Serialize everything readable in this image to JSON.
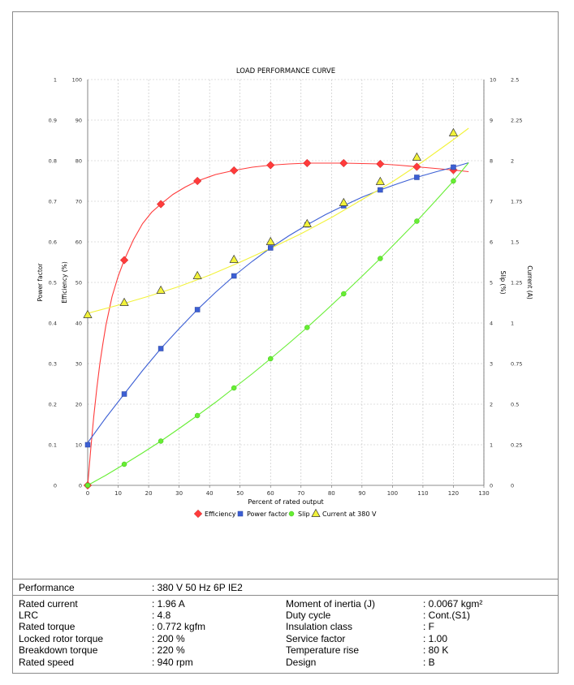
{
  "chart_data": {
    "type": "line",
    "title": "LOAD PERFORMANCE CURVE",
    "xlabel": "Percent of rated output",
    "xlim": [
      0,
      130
    ],
    "x_ticks": [
      "0",
      "10",
      "20",
      "30",
      "40",
      "50",
      "60",
      "70",
      "80",
      "90",
      "100",
      "110",
      "120",
      "130"
    ],
    "grid": true,
    "legend_position": "bottom",
    "axes": {
      "power_factor": {
        "label": "Power factor",
        "side": "left-outer",
        "range": [
          0,
          1
        ],
        "ticks": [
          "0",
          "0.1",
          "0.2",
          "0.3",
          "0.4",
          "0.5",
          "0.6",
          "0.7",
          "0.8",
          "0.9",
          "1"
        ]
      },
      "efficiency": {
        "label": "Efficiency (%)",
        "side": "left-inner",
        "range": [
          0,
          100
        ],
        "ticks": [
          "0",
          "10",
          "20",
          "30",
          "40",
          "50",
          "60",
          "70",
          "80",
          "90",
          "100"
        ]
      },
      "slip": {
        "label": "Slip (%)",
        "side": "right-inner",
        "range": [
          0,
          10
        ],
        "ticks": [
          "0",
          "1",
          "2",
          "3",
          "4",
          "5",
          "6",
          "7",
          "8",
          "9",
          "10"
        ]
      },
      "current": {
        "label": "Current (A)",
        "side": "right-outer",
        "range": [
          0,
          2.5
        ],
        "ticks": [
          "0",
          "0.25",
          "0.5",
          "0.75",
          "1",
          "1.25",
          "1.5",
          "1.75",
          "2",
          "2.25",
          "2.5"
        ]
      }
    },
    "series": [
      {
        "name": "Efficiency",
        "axis": "efficiency",
        "color": "#ff3b3b",
        "marker": "diamond",
        "x": [
          0,
          12,
          24,
          36,
          48,
          60,
          72,
          84,
          96,
          108,
          120
        ],
        "y": [
          0,
          55.5,
          69.3,
          75,
          77.6,
          78.9,
          79.4,
          79.4,
          79.2,
          78.5,
          77.7
        ],
        "curve_x": [
          0,
          1,
          2,
          3,
          4,
          5,
          6,
          8,
          10,
          12,
          15,
          18,
          21,
          24,
          28,
          32,
          36,
          42,
          48,
          54,
          60,
          66,
          72,
          78,
          84,
          90,
          96,
          102,
          108,
          114,
          120,
          125
        ],
        "curve_y": [
          0,
          9,
          17,
          24,
          30,
          35,
          39.5,
          46.5,
          51.5,
          55.5,
          60.5,
          64.5,
          67.3,
          69.3,
          71.7,
          73.5,
          75,
          76.6,
          77.6,
          78.4,
          78.9,
          79.2,
          79.4,
          79.4,
          79.4,
          79.3,
          79.2,
          78.9,
          78.5,
          78.1,
          77.7,
          77.3
        ]
      },
      {
        "name": "Power factor",
        "axis": "power_factor",
        "color": "#3c5fd4",
        "marker": "square",
        "x": [
          0,
          12,
          24,
          36,
          48,
          60,
          72,
          84,
          96,
          108,
          120
        ],
        "y": [
          0.1,
          0.225,
          0.337,
          0.433,
          0.516,
          0.585,
          0.642,
          0.689,
          0.728,
          0.759,
          0.784
        ],
        "curve_x": [
          0,
          6,
          12,
          18,
          24,
          30,
          36,
          42,
          48,
          54,
          60,
          66,
          72,
          78,
          84,
          90,
          96,
          102,
          108,
          114,
          120,
          125
        ],
        "curve_y": [
          0.105,
          0.167,
          0.225,
          0.283,
          0.337,
          0.386,
          0.433,
          0.476,
          0.516,
          0.552,
          0.585,
          0.615,
          0.642,
          0.667,
          0.689,
          0.71,
          0.728,
          0.744,
          0.759,
          0.772,
          0.784,
          0.795
        ]
      },
      {
        "name": "Slip",
        "axis": "slip",
        "color": "#66ee33",
        "marker": "circle",
        "x": [
          0,
          12,
          24,
          36,
          48,
          60,
          72,
          84,
          96,
          108,
          120
        ],
        "y": [
          0,
          0.52,
          1.09,
          1.72,
          2.4,
          3.12,
          3.89,
          4.72,
          5.59,
          6.51,
          7.5
        ],
        "curve_x": [
          0,
          6,
          12,
          18,
          24,
          30,
          36,
          42,
          48,
          54,
          60,
          66,
          72,
          78,
          84,
          90,
          96,
          102,
          108,
          114,
          120,
          125
        ],
        "curve_y": [
          0,
          0.25,
          0.52,
          0.8,
          1.09,
          1.4,
          1.72,
          2.05,
          2.4,
          2.75,
          3.12,
          3.5,
          3.89,
          4.3,
          4.72,
          5.15,
          5.59,
          6.05,
          6.51,
          7,
          7.5,
          7.95
        ]
      },
      {
        "name": "Current at 380 V",
        "axis": "current",
        "color": "#f2f23a",
        "marker": "triangle",
        "x": [
          0,
          12,
          24,
          36,
          48,
          60,
          72,
          84,
          96,
          108,
          120
        ],
        "y": [
          1.05,
          1.125,
          1.2,
          1.29,
          1.39,
          1.5,
          1.61,
          1.74,
          1.87,
          2.02,
          2.17
        ],
        "curve_x": [
          0,
          10,
          20,
          30,
          40,
          50,
          60,
          70,
          80,
          90,
          100,
          110,
          120,
          125
        ],
        "curve_y": [
          1.06,
          1.11,
          1.165,
          1.225,
          1.295,
          1.375,
          1.46,
          1.55,
          1.65,
          1.76,
          1.87,
          1.995,
          2.13,
          2.2
        ]
      }
    ]
  },
  "specs": {
    "performance": {
      "label": "Performance",
      "value": ": 380 V 50 Hz 6P IE2"
    },
    "left": [
      {
        "label": "Rated current",
        "value": ": 1.96 A"
      },
      {
        "label": "LRC",
        "value": ": 4.8"
      },
      {
        "label": "Rated torque",
        "value": ": 0.772 kgfm"
      },
      {
        "label": "Locked rotor torque",
        "value": ": 200 %"
      },
      {
        "label": "Breakdown torque",
        "value": ": 220 %"
      },
      {
        "label": "Rated speed",
        "value": ": 940 rpm"
      }
    ],
    "right": [
      {
        "label": "Moment of inertia (J)",
        "value": ": 0.0067 kgm²"
      },
      {
        "label": "Duty cycle",
        "value": ": Cont.(S1)"
      },
      {
        "label": "Insulation class",
        "value": ": F"
      },
      {
        "label": "Service factor",
        "value": ": 1.00"
      },
      {
        "label": "Temperature rise",
        "value": ": 80 K"
      },
      {
        "label": "Design",
        "value": ": B"
      }
    ]
  }
}
